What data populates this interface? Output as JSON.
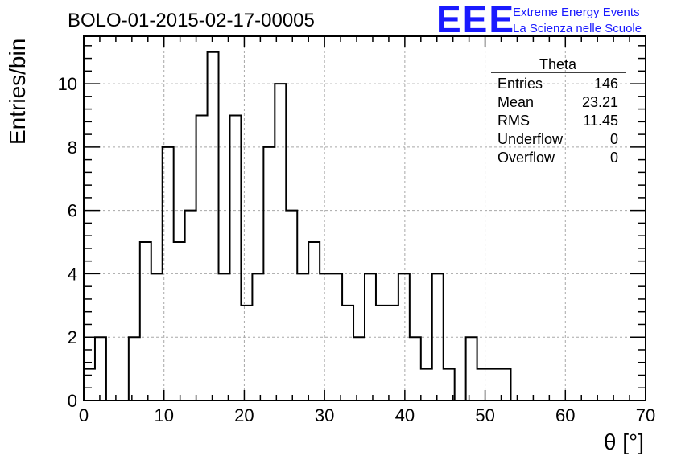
{
  "title": "BOLO-01-2015-02-17-00005",
  "logo": {
    "mark": "EEE",
    "line1": "Extreme Energy Events",
    "line2": "La Scienza nelle Scuole",
    "color": "#1a1aff"
  },
  "stats": {
    "name": "Theta",
    "rows": [
      {
        "label": "Entries",
        "value": "146"
      },
      {
        "label": "Mean",
        "value": "23.21"
      },
      {
        "label": "RMS",
        "value": "11.45"
      },
      {
        "label": "Underflow",
        "value": "0"
      },
      {
        "label": "Overflow",
        "value": "0"
      }
    ]
  },
  "chart_data": {
    "type": "bar",
    "histogram": true,
    "title": "BOLO-01-2015-02-17-00005",
    "xlabel": "θ [°]",
    "ylabel": "Entries/bin",
    "xlim": [
      0,
      70
    ],
    "ylim": [
      0,
      11.5
    ],
    "xticks": [
      0,
      10,
      20,
      30,
      40,
      50,
      60,
      70
    ],
    "yticks": [
      0,
      2,
      4,
      6,
      8,
      10
    ],
    "grid": true,
    "bin_width": 1.4,
    "bin_start": 0,
    "values": [
      1,
      2,
      0,
      0,
      2,
      5,
      4,
      8,
      5,
      6,
      9,
      11,
      4,
      9,
      3,
      4,
      8,
      10,
      6,
      4,
      5,
      4,
      4,
      3,
      2,
      4,
      3,
      3,
      4,
      2,
      1,
      4,
      1,
      0,
      2,
      1,
      1,
      1,
      0,
      0,
      0,
      0,
      0,
      0,
      0,
      0,
      0,
      0,
      0,
      0
    ]
  }
}
